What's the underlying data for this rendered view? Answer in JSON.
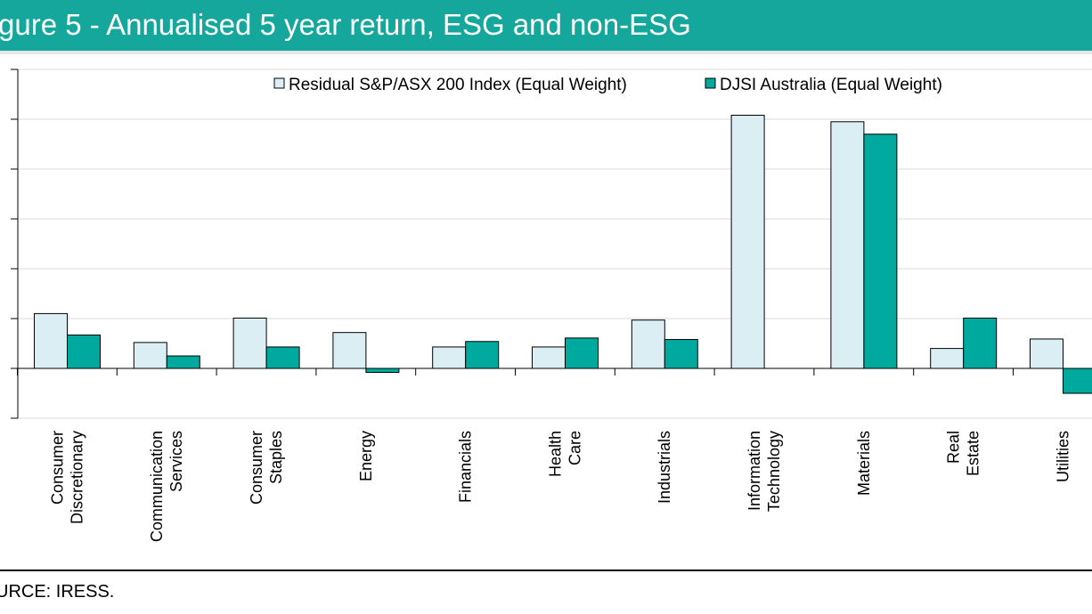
{
  "figure": {
    "title": "gure 5 - Annualised 5 year return, ESG and non-ESG",
    "source": "URCE: IRESS."
  },
  "colors": {
    "title_bar": "#15a79b",
    "series_residual": "#dbeef3",
    "series_djsi": "#00a99d",
    "outline": "#000000"
  },
  "chart_data": {
    "type": "bar",
    "title": "",
    "xlabel": "",
    "ylabel": "",
    "ylim": [
      -1,
      6
    ],
    "ytick_step": 1,
    "grid": true,
    "legend_position": "top-center",
    "categories": [
      [
        "Consumer",
        "Discretionary"
      ],
      [
        "Communication",
        "Services"
      ],
      [
        "Consumer",
        "Staples"
      ],
      [
        "Energy"
      ],
      [
        "Financials"
      ],
      [
        "Health",
        "Care"
      ],
      [
        "Industrials"
      ],
      [
        "Information",
        "Technology"
      ],
      [
        "Materials"
      ],
      [
        "Real",
        "Estate"
      ],
      [
        "Utilities"
      ]
    ],
    "series": [
      {
        "name": "Residual S&P/ASX 200 Index (Equal Weight)",
        "values": [
          1.1,
          0.52,
          1.01,
          0.72,
          0.43,
          0.43,
          0.97,
          5.08,
          4.95,
          0.4,
          0.59
        ]
      },
      {
        "name": "DJSI Australia (Equal Weight)",
        "values": [
          0.67,
          0.25,
          0.43,
          -0.08,
          0.54,
          0.61,
          0.58,
          0.0,
          4.7,
          1.01,
          -0.5
        ]
      }
    ]
  }
}
